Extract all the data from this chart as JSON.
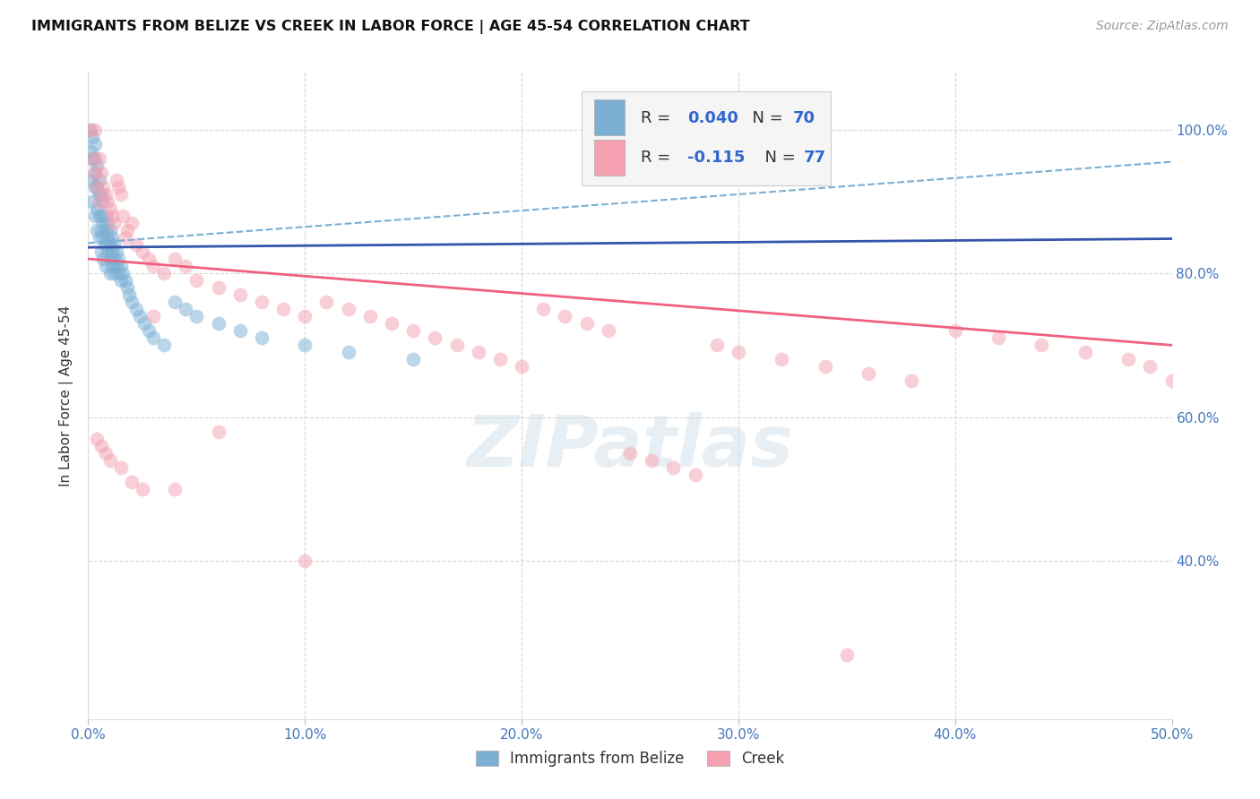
{
  "title": "IMMIGRANTS FROM BELIZE VS CREEK IN LABOR FORCE | AGE 45-54 CORRELATION CHART",
  "source": "Source: ZipAtlas.com",
  "ylabel": "In Labor Force | Age 45-54",
  "xlim": [
    0.0,
    0.5
  ],
  "ylim": [
    0.18,
    1.08
  ],
  "xtick_vals": [
    0.0,
    0.1,
    0.2,
    0.3,
    0.4,
    0.5
  ],
  "xticklabels": [
    "0.0%",
    "10.0%",
    "20.0%",
    "30.0%",
    "40.0%",
    "50.0%"
  ],
  "ytick_vals": [
    0.4,
    0.6,
    0.8,
    1.0
  ],
  "yticklabels_right": [
    "40.0%",
    "60.0%",
    "80.0%",
    "100.0%"
  ],
  "legend_label_blue": "Immigrants from Belize",
  "legend_label_pink": "Creek",
  "blue_color": "#7BAFD4",
  "pink_color": "#F4A0B0",
  "blue_line_color": "#3355AA",
  "blue_dash_color": "#7BAFD4",
  "pink_line_color": "#F06080",
  "watermark": "ZIPatlas",
  "tick_color": "#4477BB",
  "blue_x": [
    0.001,
    0.001,
    0.002,
    0.002,
    0.002,
    0.002,
    0.003,
    0.003,
    0.003,
    0.003,
    0.003,
    0.004,
    0.004,
    0.004,
    0.004,
    0.005,
    0.005,
    0.005,
    0.005,
    0.006,
    0.006,
    0.006,
    0.006,
    0.007,
    0.007,
    0.007,
    0.007,
    0.008,
    0.008,
    0.008,
    0.008,
    0.009,
    0.009,
    0.009,
    0.01,
    0.01,
    0.01,
    0.01,
    0.011,
    0.011,
    0.011,
    0.012,
    0.012,
    0.012,
    0.013,
    0.013,
    0.014,
    0.014,
    0.015,
    0.015,
    0.016,
    0.017,
    0.018,
    0.019,
    0.02,
    0.022,
    0.024,
    0.026,
    0.028,
    0.03,
    0.035,
    0.04,
    0.045,
    0.05,
    0.06,
    0.07,
    0.08,
    0.1,
    0.12,
    0.15
  ],
  "blue_y": [
    1.0,
    0.97,
    0.99,
    0.96,
    0.93,
    0.9,
    0.98,
    0.96,
    0.94,
    0.92,
    0.88,
    0.95,
    0.92,
    0.89,
    0.86,
    0.93,
    0.91,
    0.88,
    0.85,
    0.91,
    0.88,
    0.86,
    0.83,
    0.9,
    0.87,
    0.85,
    0.82,
    0.88,
    0.86,
    0.84,
    0.81,
    0.87,
    0.85,
    0.83,
    0.86,
    0.84,
    0.82,
    0.8,
    0.85,
    0.83,
    0.81,
    0.84,
    0.82,
    0.8,
    0.83,
    0.81,
    0.82,
    0.8,
    0.81,
    0.79,
    0.8,
    0.79,
    0.78,
    0.77,
    0.76,
    0.75,
    0.74,
    0.73,
    0.72,
    0.71,
    0.7,
    0.76,
    0.75,
    0.74,
    0.73,
    0.72,
    0.71,
    0.7,
    0.69,
    0.68
  ],
  "pink_x": [
    0.001,
    0.002,
    0.003,
    0.003,
    0.004,
    0.005,
    0.005,
    0.006,
    0.007,
    0.008,
    0.009,
    0.01,
    0.011,
    0.012,
    0.013,
    0.014,
    0.015,
    0.016,
    0.017,
    0.018,
    0.02,
    0.022,
    0.025,
    0.028,
    0.03,
    0.035,
    0.04,
    0.045,
    0.05,
    0.06,
    0.07,
    0.08,
    0.09,
    0.1,
    0.11,
    0.12,
    0.13,
    0.14,
    0.15,
    0.16,
    0.17,
    0.18,
    0.19,
    0.2,
    0.21,
    0.22,
    0.23,
    0.24,
    0.25,
    0.26,
    0.27,
    0.28,
    0.29,
    0.3,
    0.32,
    0.34,
    0.36,
    0.38,
    0.4,
    0.42,
    0.44,
    0.46,
    0.48,
    0.49,
    0.5,
    0.004,
    0.006,
    0.008,
    0.01,
    0.015,
    0.02,
    0.025,
    0.03,
    0.04,
    0.06,
    0.1,
    0.35
  ],
  "pink_y": [
    1.0,
    0.96,
    0.94,
    1.0,
    0.92,
    0.9,
    0.96,
    0.94,
    0.92,
    0.91,
    0.9,
    0.89,
    0.88,
    0.87,
    0.93,
    0.92,
    0.91,
    0.88,
    0.85,
    0.86,
    0.87,
    0.84,
    0.83,
    0.82,
    0.81,
    0.8,
    0.82,
    0.81,
    0.79,
    0.78,
    0.77,
    0.76,
    0.75,
    0.74,
    0.76,
    0.75,
    0.74,
    0.73,
    0.72,
    0.71,
    0.7,
    0.69,
    0.68,
    0.67,
    0.75,
    0.74,
    0.73,
    0.72,
    0.55,
    0.54,
    0.53,
    0.52,
    0.7,
    0.69,
    0.68,
    0.67,
    0.66,
    0.65,
    0.72,
    0.71,
    0.7,
    0.69,
    0.68,
    0.67,
    0.65,
    0.57,
    0.56,
    0.55,
    0.54,
    0.53,
    0.51,
    0.5,
    0.74,
    0.5,
    0.58,
    0.4,
    0.27
  ],
  "blue_trendline": [
    0.0,
    0.5,
    0.836,
    0.848
  ],
  "pink_trendline": [
    0.0,
    0.5,
    0.82,
    0.7
  ],
  "blue_dashline": [
    0.0,
    0.5,
    0.842,
    0.955
  ]
}
